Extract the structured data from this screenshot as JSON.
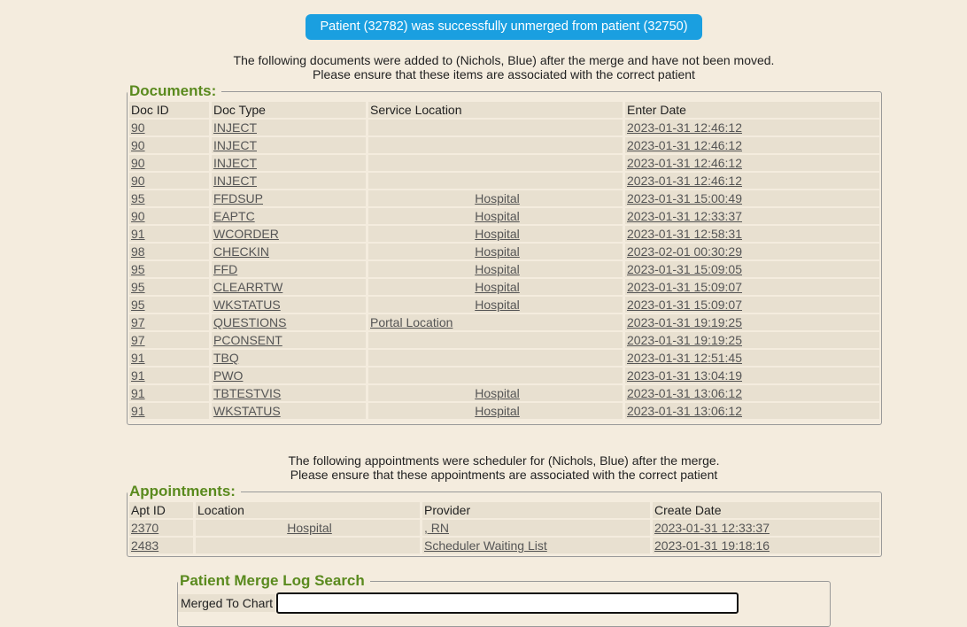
{
  "banner": "Patient (32782) was successfully unmerged from patient (32750)",
  "docs_note": [
    "The following documents were added to (Nichols, Blue) after the merge and have not been moved.",
    "Please ensure that these items are associated with the correct patient"
  ],
  "documents": {
    "legend": "Documents:",
    "headers": [
      "Doc ID",
      "Doc Type",
      "Service Location",
      "Enter Date"
    ],
    "rows": [
      [
        "90",
        "INJECT",
        "",
        "2023-01-31 12:46:12"
      ],
      [
        "90",
        "INJECT",
        "",
        "2023-01-31 12:46:12"
      ],
      [
        "90",
        "INJECT",
        "",
        "2023-01-31 12:46:12"
      ],
      [
        "90",
        "INJECT",
        "",
        "2023-01-31 12:46:12"
      ],
      [
        "95",
        "FFDSUP",
        "Hospital",
        "2023-01-31 15:00:49"
      ],
      [
        "90",
        "EAPTC",
        "Hospital",
        "2023-01-31 12:33:37"
      ],
      [
        "91",
        "WCORDER",
        "Hospital",
        "2023-01-31 12:58:31"
      ],
      [
        "98",
        "CHECKIN",
        "Hospital",
        "2023-02-01 00:30:29"
      ],
      [
        "95",
        "FFD",
        "Hospital",
        "2023-01-31 15:09:05"
      ],
      [
        "95",
        "CLEARRTW",
        "Hospital",
        "2023-01-31 15:09:07"
      ],
      [
        "95",
        "WKSTATUS",
        "Hospital",
        "2023-01-31 15:09:07"
      ],
      [
        "97",
        "QUESTIONS",
        "Portal Location",
        "2023-01-31 19:19:25"
      ],
      [
        "97",
        "PCONSENT",
        "",
        "2023-01-31 19:19:25"
      ],
      [
        "91",
        "TBQ",
        "",
        "2023-01-31 12:51:45"
      ],
      [
        "91",
        "PWO",
        "",
        "2023-01-31 13:04:19"
      ],
      [
        "91",
        "TBTESTVIS",
        "Hospital",
        "2023-01-31 13:06:12"
      ],
      [
        "91",
        "WKSTATUS",
        "Hospital",
        "2023-01-31 13:06:12"
      ]
    ]
  },
  "appts_note": [
    "The following appointments were scheduler for (Nichols, Blue) after the merge.",
    "Please ensure that these appointments are associated with the correct patient"
  ],
  "appointments": {
    "legend": "Appointments:",
    "headers": [
      "Apt ID",
      "Location",
      "Provider",
      "Create Date"
    ],
    "rows": [
      [
        "2370",
        "Hospital",
        ", RN",
        "2023-01-31 12:33:37"
      ],
      [
        "2483",
        "",
        "Scheduler Waiting List",
        "2023-01-31 19:18:16"
      ]
    ]
  },
  "search": {
    "legend": "Patient Merge Log Search",
    "merged_to_label": "Merged To Chart",
    "merged_to_value": ""
  }
}
